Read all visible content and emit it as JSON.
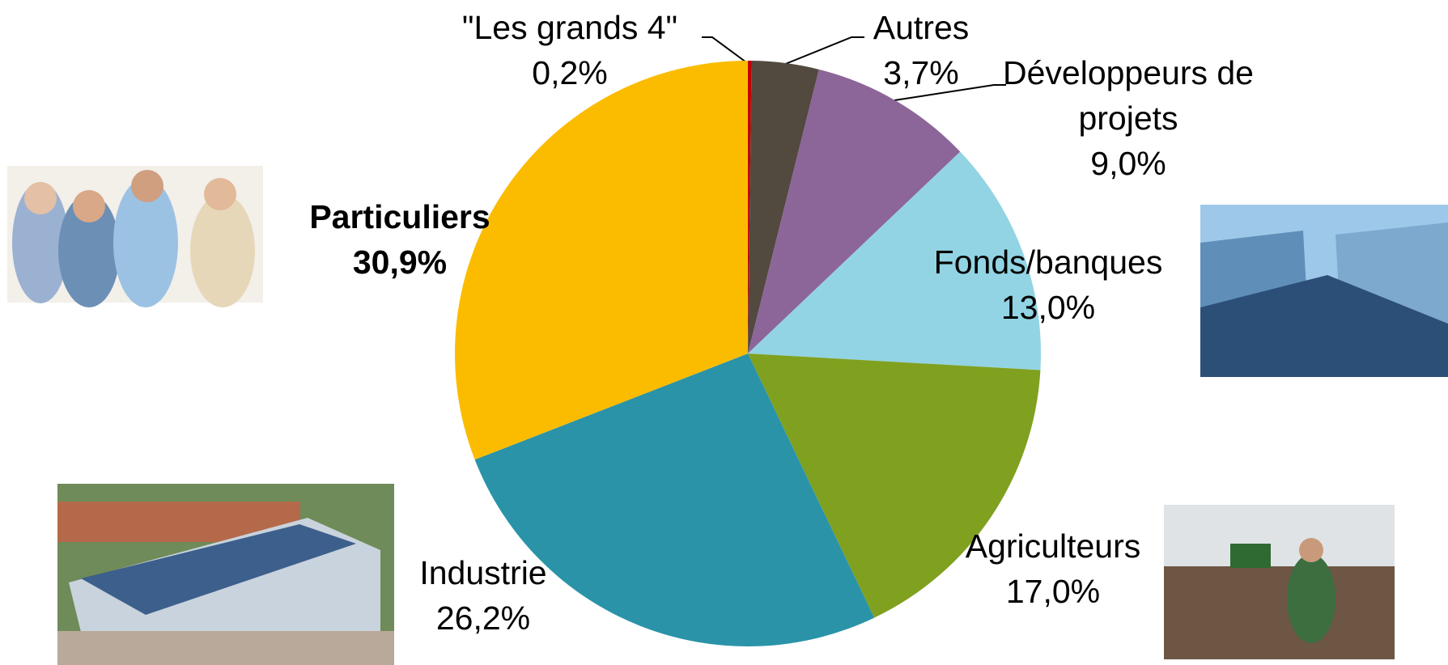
{
  "chart_data": {
    "type": "pie",
    "categories": [
      "\"Les grands 4\"",
      "Autres",
      "Développeurs de projets",
      "Fonds/banques",
      "Agriculteurs",
      "Industrie",
      "Particuliers"
    ],
    "values": [
      0.2,
      3.7,
      9.0,
      13.0,
      17.0,
      26.2,
      30.9
    ],
    "value_labels": [
      "0,2%",
      "3,7%",
      "9,0%",
      "13,0%",
      "17,0%",
      "26,2%",
      "30,9%"
    ],
    "colors": [
      "#c00000",
      "#524a3f",
      "#8c6699",
      "#92d4e3",
      "#80a020",
      "#2a93a8",
      "#fbbc00"
    ]
  }
}
